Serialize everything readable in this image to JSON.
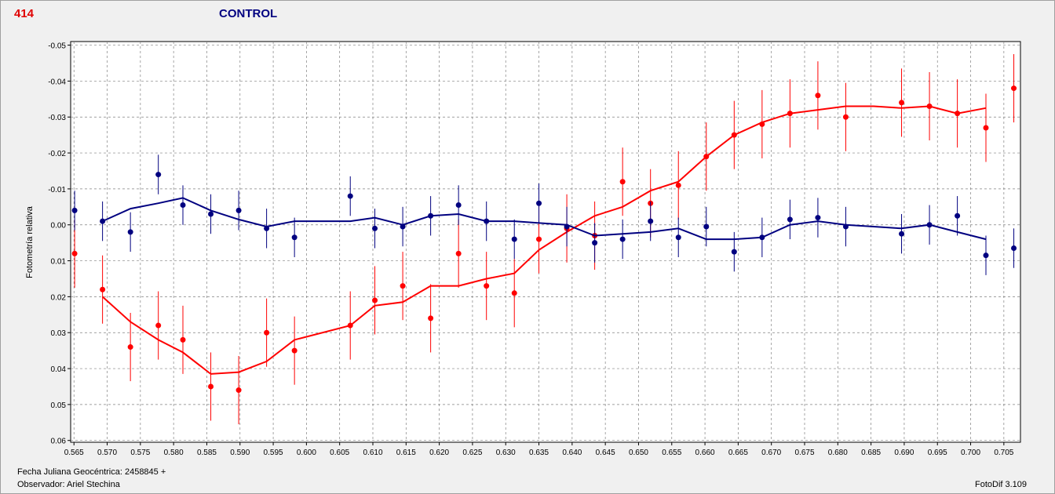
{
  "header": {
    "object_id": "414",
    "title": "CONTROL"
  },
  "footer": {
    "date_label": "Fecha Juliana Geocéntrica: 2458845 +",
    "observer_label": "Observador: Ariel Stechina",
    "software": "FotoDif 3.109"
  },
  "colors": {
    "variable": "#ff0000",
    "control": "#000080"
  },
  "chart_data": {
    "type": "scatter",
    "title": "CONTROL",
    "xlabel": "",
    "ylabel": "Fotometría relativa",
    "xlim": [
      0.5645,
      0.7075
    ],
    "ylim": [
      -0.051,
      0.0605
    ],
    "y_inverted": true,
    "grid": true,
    "x_ticks": [
      "0.565",
      "0.570",
      "0.575",
      "0.580",
      "0.585",
      "0.590",
      "0.595",
      "0.600",
      "0.605",
      "0.610",
      "0.615",
      "0.620",
      "0.625",
      "0.630",
      "0.635",
      "0.640",
      "0.645",
      "0.650",
      "0.655",
      "0.660",
      "0.665",
      "0.670",
      "0.675",
      "0.680",
      "0.685",
      "0.690",
      "0.695",
      "0.700",
      "0.705"
    ],
    "y_ticks": [
      "-0.05",
      "-0.04",
      "-0.03",
      "-0.02",
      "-0.01",
      "0.00",
      "0.01",
      "0.02",
      "0.03",
      "0.04",
      "0.05",
      "0.06"
    ],
    "series": [
      {
        "color": "#ff0000",
        "error": 0.0095,
        "x": [
          0.5651,
          0.5693,
          0.5735,
          0.5777,
          0.5814,
          0.5856,
          0.5898,
          0.594,
          0.5982,
          0.6066,
          0.6103,
          0.6145,
          0.6187,
          0.6229,
          0.6271,
          0.6313,
          0.635,
          0.6392,
          0.6434,
          0.6476,
          0.6518,
          0.656,
          0.6602,
          0.6644,
          0.6686,
          0.6728,
          0.677,
          0.6812,
          0.6896,
          0.6938,
          0.698,
          0.7023,
          0.7065
        ],
        "y": [
          0.008,
          0.018,
          0.034,
          0.028,
          0.032,
          0.045,
          0.046,
          0.03,
          0.035,
          0.028,
          0.021,
          0.017,
          0.026,
          0.008,
          0.017,
          0.019,
          0.004,
          0.001,
          0.003,
          -0.012,
          -0.006,
          -0.011,
          -0.019,
          -0.025,
          -0.028,
          -0.031,
          -0.036,
          -0.03,
          -0.034,
          -0.033,
          -0.031,
          -0.027,
          -0.038
        ],
        "trend_x": [
          0.5693,
          0.5735,
          0.5777,
          0.5814,
          0.5856,
          0.5898,
          0.594,
          0.5982,
          0.6066,
          0.6103,
          0.6145,
          0.6187,
          0.6229,
          0.6271,
          0.6313,
          0.635,
          0.6392,
          0.6434,
          0.6476,
          0.6518,
          0.656,
          0.6602,
          0.6644,
          0.6686,
          0.6728,
          0.677,
          0.6812,
          0.6854,
          0.6896,
          0.6938,
          0.698,
          0.7023
        ],
        "trend_y": [
          0.02,
          0.027,
          0.032,
          0.0355,
          0.0415,
          0.041,
          0.038,
          0.032,
          0.028,
          0.0225,
          0.0215,
          0.017,
          0.017,
          0.015,
          0.0135,
          0.007,
          0.002,
          -0.0025,
          -0.005,
          -0.0095,
          -0.012,
          -0.019,
          -0.025,
          -0.0285,
          -0.031,
          -0.032,
          -0.033,
          -0.033,
          -0.0325,
          -0.033,
          -0.031,
          -0.0325
        ]
      },
      {
        "color": "#000080",
        "error": 0.0055,
        "x": [
          0.5651,
          0.5693,
          0.5735,
          0.5777,
          0.5814,
          0.5856,
          0.5898,
          0.594,
          0.5982,
          0.6066,
          0.6103,
          0.6145,
          0.6187,
          0.6229,
          0.6271,
          0.6313,
          0.635,
          0.6392,
          0.6434,
          0.6476,
          0.6518,
          0.656,
          0.6602,
          0.6644,
          0.6686,
          0.6728,
          0.677,
          0.6812,
          0.6896,
          0.6938,
          0.698,
          0.7023,
          0.7065
        ],
        "y": [
          -0.004,
          -0.001,
          0.002,
          -0.014,
          -0.0055,
          -0.003,
          -0.004,
          0.001,
          0.0035,
          -0.008,
          0.001,
          0.0005,
          -0.0025,
          -0.0055,
          -0.001,
          0.004,
          -0.006,
          0.0005,
          0.005,
          0.004,
          -0.001,
          0.0035,
          0.0005,
          0.0075,
          0.0035,
          -0.0015,
          -0.002,
          0.0005,
          0.0025,
          0.0,
          -0.0025,
          0.0085,
          0.0065
        ],
        "trend_x": [
          0.5693,
          0.5735,
          0.5777,
          0.5814,
          0.5856,
          0.5898,
          0.594,
          0.5982,
          0.6066,
          0.6103,
          0.6145,
          0.6187,
          0.6229,
          0.6271,
          0.6313,
          0.635,
          0.6392,
          0.6434,
          0.6476,
          0.6518,
          0.656,
          0.6602,
          0.6644,
          0.6686,
          0.6728,
          0.677,
          0.6812,
          0.6854,
          0.6896,
          0.6938,
          0.698,
          0.7023
        ],
        "trend_y": [
          -0.001,
          -0.0045,
          -0.006,
          -0.0075,
          -0.004,
          -0.0015,
          0.0005,
          -0.001,
          -0.001,
          -0.002,
          0.0,
          -0.0025,
          -0.003,
          -0.001,
          -0.001,
          -0.0005,
          0.0,
          0.003,
          0.0025,
          0.002,
          0.001,
          0.004,
          0.004,
          0.0035,
          0.0,
          -0.001,
          0.0,
          0.0005,
          0.001,
          0.0,
          0.002,
          0.004
        ]
      }
    ]
  }
}
